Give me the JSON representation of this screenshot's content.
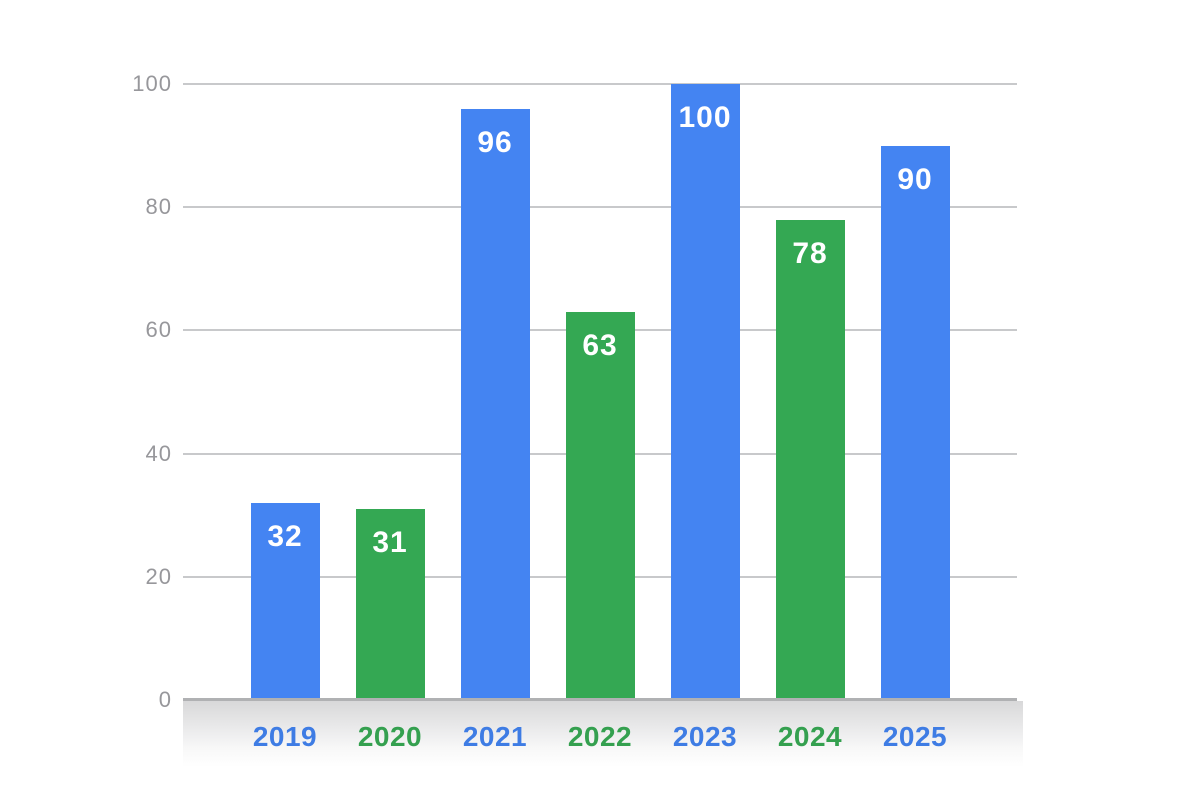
{
  "chart_data": {
    "type": "bar",
    "title": "",
    "categories": [
      "2019",
      "2020",
      "2021",
      "2022",
      "2023",
      "2024",
      "2025"
    ],
    "values": [
      32,
      31,
      96,
      63,
      100,
      78,
      90
    ],
    "bar_color_keys": [
      "blue",
      "green",
      "blue",
      "green",
      "blue",
      "green",
      "blue"
    ],
    "value_label_position": "inside-top",
    "value_label_color": "#FFFFFF",
    "xlabel": "",
    "ylabel": "",
    "ylim": [
      0,
      100
    ],
    "yticks": [
      0,
      20,
      40,
      60,
      80,
      100
    ],
    "grid": true,
    "legend": "none"
  },
  "colors": {
    "bar_blue": "#4484F2",
    "bar_green": "#34A853",
    "xlabel_blue": "#3E7CE4",
    "xlabel_green": "#34A04F",
    "ytick_gray": "#97979B",
    "gridline": "#C8C9CB",
    "axis_line": "#B0B1B3",
    "background": "#FFFFFF"
  }
}
